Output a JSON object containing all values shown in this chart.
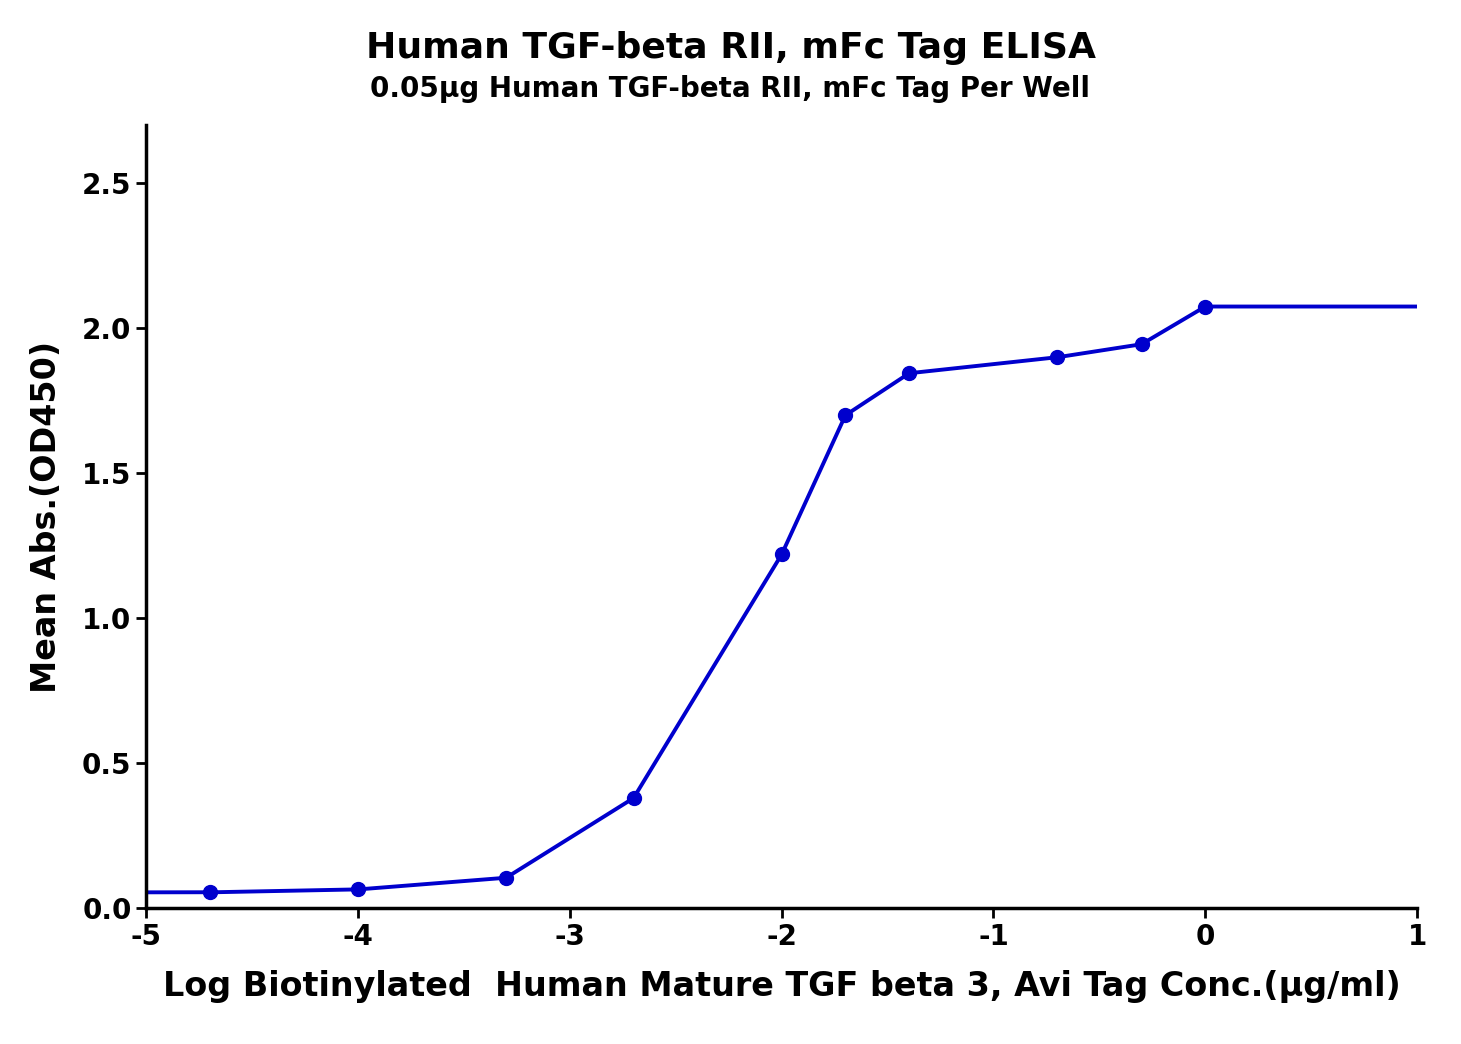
{
  "title": "Human TGF-beta RII, mFc Tag ELISA",
  "subtitle": "0.05μg Human TGF-beta RII, mFc Tag Per Well",
  "xlabel": "Log Biotinylated  Human Mature TGF beta 3, Avi Tag Conc.(μg/ml)",
  "ylabel": "Mean Abs.(OD450)",
  "data_x": [
    -4.699,
    -4.0,
    -3.301,
    -2.699,
    -2.0,
    -1.699,
    -1.398,
    -0.699,
    -0.301,
    0.0
  ],
  "data_y": [
    0.055,
    0.065,
    0.105,
    0.38,
    1.22,
    1.7,
    1.845,
    1.9,
    1.945,
    2.075
  ],
  "xlim": [
    -5.0,
    1.0
  ],
  "ylim": [
    0.0,
    2.7
  ],
  "xticks": [
    -5,
    -4,
    -3,
    -2,
    -1,
    0,
    1
  ],
  "yticks": [
    0.0,
    0.5,
    1.0,
    1.5,
    2.0,
    2.5
  ],
  "curve_color": "#0000CD",
  "dot_color": "#0000CD",
  "dot_size": 100,
  "line_width": 2.8,
  "title_fontsize": 26,
  "subtitle_fontsize": 20,
  "label_fontsize": 24,
  "tick_fontsize": 20,
  "background_color": "#ffffff",
  "axis_linewidth": 2.5
}
